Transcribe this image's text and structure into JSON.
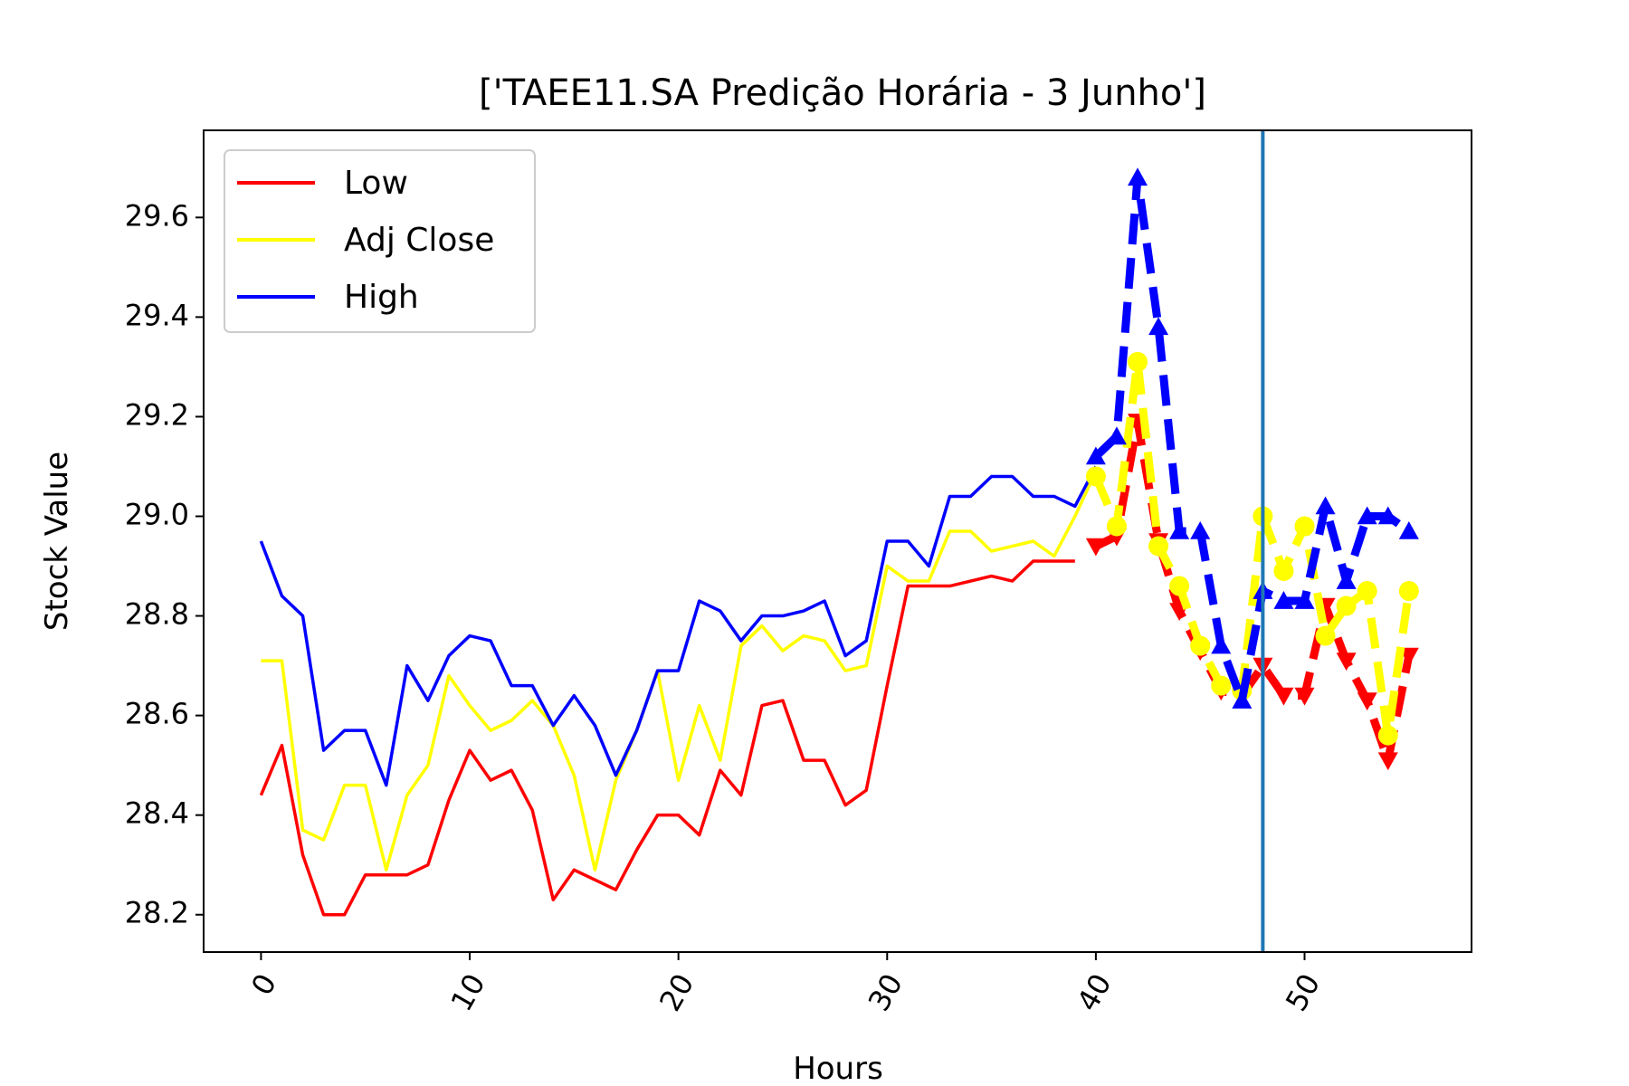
{
  "chart_data": {
    "type": "line",
    "title": "['TAEE11.SA Predição Horária - 3 Junho']",
    "xlabel": "Hours",
    "ylabel": "Stock Value",
    "xlim": [
      -2.75,
      58
    ],
    "ylim": [
      28.125,
      29.775
    ],
    "xticks": [
      0,
      10,
      20,
      30,
      40,
      50
    ],
    "xtick_labels": [
      "0",
      "10",
      "20",
      "30",
      "40",
      "50"
    ],
    "xtick_rotation": -60,
    "yticks": [
      28.2,
      28.4,
      28.6,
      28.8,
      29.0,
      29.2,
      29.4,
      29.6
    ],
    "ytick_labels": [
      "28.2",
      "28.4",
      "28.6",
      "28.8",
      "29.0",
      "29.2",
      "29.4",
      "29.6"
    ],
    "grid": false,
    "legend": {
      "position": "top-left",
      "entries": [
        "Low",
        "Adj Close",
        "High"
      ]
    },
    "vline": {
      "x": 48,
      "color": "#1f77b4"
    },
    "series": [
      {
        "name": "Low",
        "color": "#ff0000",
        "kind": "actual",
        "x": [
          0,
          1,
          2,
          3,
          4,
          5,
          6,
          7,
          8,
          9,
          10,
          11,
          12,
          13,
          14,
          15,
          16,
          17,
          18,
          19,
          20,
          21,
          22,
          23,
          24,
          25,
          26,
          27,
          28,
          29,
          30,
          31,
          32,
          33,
          34,
          35,
          36,
          37,
          38,
          39
        ],
        "y": [
          28.44,
          28.54,
          28.32,
          28.2,
          28.2,
          28.28,
          28.28,
          28.28,
          28.3,
          28.43,
          28.53,
          28.47,
          28.49,
          28.41,
          28.23,
          28.29,
          28.27,
          28.25,
          28.33,
          28.4,
          28.4,
          28.36,
          28.49,
          28.44,
          28.62,
          28.63,
          28.51,
          28.51,
          28.42,
          28.45,
          28.66,
          28.86,
          28.86,
          28.86,
          28.87,
          28.88,
          28.87,
          28.91,
          28.91,
          28.91
        ]
      },
      {
        "name": "Adj Close",
        "color": "#ffff00",
        "kind": "actual",
        "x": [
          0,
          1,
          2,
          3,
          4,
          5,
          6,
          7,
          8,
          9,
          10,
          11,
          12,
          13,
          14,
          15,
          16,
          17,
          18,
          19,
          20,
          21,
          22,
          23,
          24,
          25,
          26,
          27,
          28,
          29,
          30,
          31,
          32,
          33,
          34,
          35,
          36,
          37,
          38,
          39,
          40
        ],
        "y": [
          28.71,
          28.71,
          28.37,
          28.35,
          28.46,
          28.46,
          28.29,
          28.44,
          28.5,
          28.68,
          28.62,
          28.57,
          28.59,
          28.63,
          28.58,
          28.48,
          28.29,
          28.47,
          28.57,
          28.69,
          28.47,
          28.62,
          28.51,
          28.74,
          28.78,
          28.73,
          28.76,
          28.75,
          28.69,
          28.7,
          28.9,
          28.87,
          28.87,
          28.97,
          28.97,
          28.93,
          28.94,
          28.95,
          28.92,
          29.0,
          29.09
        ]
      },
      {
        "name": "High",
        "color": "#0000ff",
        "kind": "actual",
        "x": [
          0,
          1,
          2,
          3,
          4,
          5,
          6,
          7,
          8,
          9,
          10,
          11,
          12,
          13,
          14,
          15,
          16,
          17,
          18,
          19,
          20,
          21,
          22,
          23,
          24,
          25,
          26,
          27,
          28,
          29,
          30,
          31,
          32,
          33,
          34,
          35,
          36,
          37,
          38,
          39,
          40
        ],
        "y": [
          28.95,
          28.84,
          28.8,
          28.53,
          28.57,
          28.57,
          28.46,
          28.7,
          28.63,
          28.72,
          28.76,
          28.75,
          28.66,
          28.66,
          28.58,
          28.64,
          28.58,
          28.48,
          28.57,
          28.69,
          28.69,
          28.83,
          28.81,
          28.75,
          28.8,
          28.8,
          28.81,
          28.83,
          28.72,
          28.75,
          28.95,
          28.95,
          28.9,
          29.04,
          29.04,
          29.08,
          29.08,
          29.04,
          29.04,
          29.02,
          29.1
        ]
      },
      {
        "name": "Low",
        "color": "#ff0000",
        "kind": "predicted",
        "marker": "triangle-down",
        "x": [
          40,
          41,
          42,
          43,
          44,
          45,
          46,
          47,
          48,
          49,
          50,
          51,
          52,
          53,
          54,
          55
        ],
        "y": [
          28.94,
          28.96,
          29.19,
          28.95,
          28.81,
          28.73,
          28.65,
          28.64,
          28.7,
          28.64,
          28.64,
          28.82,
          28.71,
          28.63,
          28.51,
          28.72
        ]
      },
      {
        "name": "Adj Close",
        "color": "#ffff00",
        "kind": "predicted",
        "marker": "circle",
        "x": [
          40,
          41,
          42,
          43,
          44,
          45,
          46,
          47,
          48,
          49,
          50,
          51,
          52,
          53,
          54,
          55
        ],
        "y": [
          29.08,
          28.98,
          29.31,
          28.94,
          28.86,
          28.74,
          28.66,
          28.65,
          29.0,
          28.89,
          28.98,
          28.76,
          28.82,
          28.85,
          28.56,
          28.85
        ]
      },
      {
        "name": "High",
        "color": "#0000ff",
        "kind": "predicted",
        "marker": "triangle-up",
        "x": [
          40,
          41,
          42,
          43,
          44,
          45,
          46,
          47,
          48,
          49,
          50,
          51,
          52,
          53,
          54,
          55
        ],
        "y": [
          29.12,
          29.16,
          29.68,
          29.38,
          28.97,
          28.97,
          28.74,
          28.63,
          28.85,
          28.83,
          28.83,
          29.02,
          28.87,
          29.0,
          29.0,
          28.97
        ]
      }
    ]
  }
}
